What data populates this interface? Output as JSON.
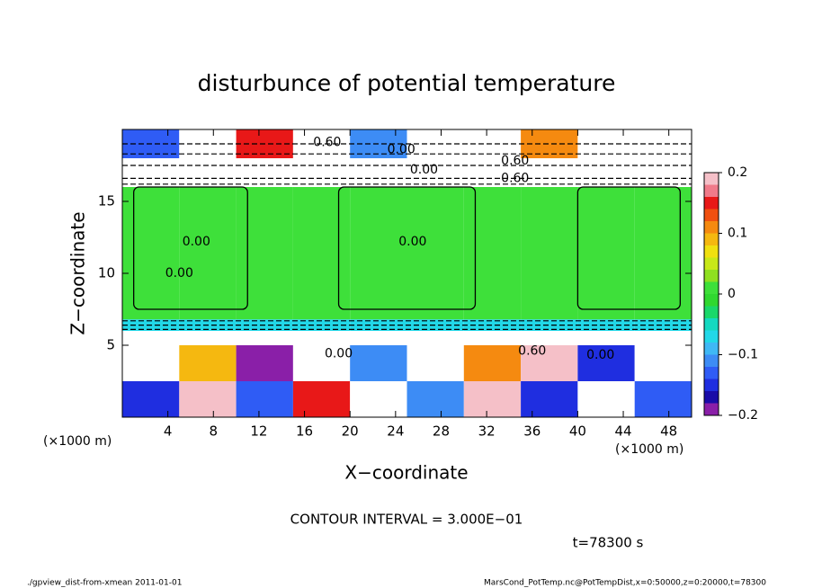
{
  "chart_data": {
    "type": "heatmap",
    "title": "disturbunce of potential temperature",
    "x_label": "X−coordinate",
    "y_label": "Z−coordinate",
    "x_unit_left": "(×1000 m)",
    "x_unit_right": "(×1000 m)",
    "xlim": [
      0,
      50
    ],
    "xticks": [
      4,
      8,
      12,
      16,
      20,
      24,
      28,
      32,
      36,
      40,
      44,
      48
    ],
    "ylim": [
      0,
      20
    ],
    "yticks": [
      5,
      10,
      15
    ],
    "x_edges": [
      0,
      5,
      10,
      15,
      20,
      25,
      30,
      35,
      40,
      45,
      50
    ],
    "z_edges": [
      0,
      2.5,
      5,
      6,
      6.8,
      12,
      16,
      18,
      20
    ],
    "z": [
      [
        -0.15,
        0.2,
        -0.12,
        0.15,
        0.3,
        -0.1,
        0.2,
        -0.15,
        0.3,
        -0.12
      ],
      [
        0.3,
        0.1,
        -0.18,
        0.3,
        -0.1,
        0.3,
        0.12,
        0.2,
        -0.14,
        0.25
      ],
      [
        0.3,
        0.3,
        0.3,
        0.3,
        0.3,
        0.3,
        0.3,
        0.3,
        0.3,
        0.3
      ],
      [
        -0.07,
        -0.07,
        -0.07,
        -0.07,
        -0.07,
        -0.07,
        -0.07,
        -0.07,
        -0.07,
        -0.07
      ],
      [
        0.01,
        0.01,
        0.01,
        0.01,
        0.01,
        0.01,
        0.01,
        0.01,
        0.01,
        0.01
      ],
      [
        0.01,
        0.01,
        0.01,
        0.01,
        0.01,
        0.01,
        0.01,
        0.01,
        0.01,
        0.01
      ],
      [
        0.3,
        0.3,
        0.3,
        0.3,
        0.3,
        0.3,
        0.3,
        0.3,
        0.3,
        0.3
      ],
      [
        -0.12,
        0.3,
        0.15,
        0.3,
        -0.1,
        0.3,
        0.3,
        0.12,
        0.3,
        0.3
      ]
    ],
    "levels": [
      -0.2,
      -0.18,
      -0.16,
      -0.14,
      -0.12,
      -0.1,
      -0.08,
      -0.06,
      -0.04,
      -0.02,
      0,
      0.02,
      0.04,
      0.06,
      0.08,
      0.1,
      0.12,
      0.14,
      0.16,
      0.18,
      0.2
    ],
    "colors": [
      "#8a1fa8",
      "#1a0ca8",
      "#1f2ee0",
      "#2f5cf5",
      "#3d8cf5",
      "#3fb8f5",
      "#22d8e8",
      "#14d9c0",
      "#1ad86a",
      "#30d830",
      "#3ee03a",
      "#8fe020",
      "#c8e818",
      "#f0e010",
      "#f5b810",
      "#f58a10",
      "#f05010",
      "#e81818",
      "#f07a8a",
      "#f5c0c8"
    ],
    "over_color": "#ffffff",
    "under_color": "#ffffff",
    "colorbar_ticks": [
      0.2,
      0.1,
      0,
      {
        "value": -0.1,
        "label": "−0.1"
      },
      {
        "value": -0.2,
        "label": "−0.2"
      }
    ],
    "contour_labels": [
      "0.60",
      "0.00",
      "0.00",
      "0.60",
      "0.60",
      "0.00",
      "0.00",
      "0.00",
      "0.00",
      "0.60",
      "0.00"
    ],
    "contour_note": "CONTOUR INTERVAL = 3.000E−01",
    "time_label": "t=78300 s",
    "footer_left": "./gpview_dist-from-xmean  2011-01-01",
    "footer_right": "MarsCond_PotTemp.nc@PotTempDist,x=0:50000,z=0:20000,t=78300"
  }
}
